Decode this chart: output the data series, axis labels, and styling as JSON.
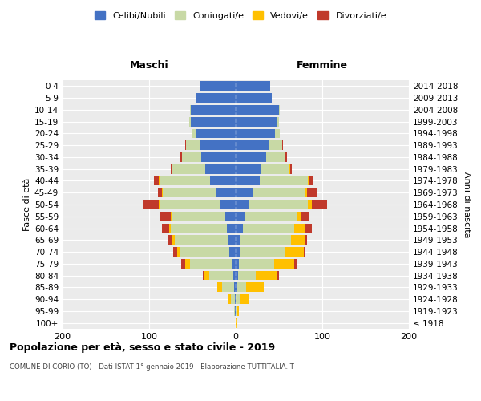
{
  "age_groups": [
    "100+",
    "95-99",
    "90-94",
    "85-89",
    "80-84",
    "75-79",
    "70-74",
    "65-69",
    "60-64",
    "55-59",
    "50-54",
    "45-49",
    "40-44",
    "35-39",
    "30-34",
    "25-29",
    "20-24",
    "15-19",
    "10-14",
    "5-9",
    "0-4"
  ],
  "birth_years": [
    "≤ 1918",
    "1919-1923",
    "1924-1928",
    "1929-1933",
    "1934-1938",
    "1939-1943",
    "1944-1948",
    "1949-1953",
    "1954-1958",
    "1959-1963",
    "1964-1968",
    "1969-1973",
    "1974-1978",
    "1979-1983",
    "1984-1988",
    "1989-1993",
    "1994-1998",
    "1999-2003",
    "2004-2008",
    "2009-2013",
    "2014-2018"
  ],
  "male": {
    "celibi": [
      0,
      1,
      1,
      2,
      3,
      5,
      7,
      8,
      10,
      12,
      18,
      22,
      30,
      35,
      40,
      42,
      45,
      52,
      52,
      45,
      42
    ],
    "coniugati": [
      0,
      1,
      5,
      14,
      28,
      48,
      58,
      62,
      65,
      62,
      70,
      62,
      58,
      38,
      22,
      15,
      5,
      2,
      1,
      0,
      0
    ],
    "vedovi": [
      0,
      0,
      2,
      5,
      5,
      5,
      3,
      3,
      2,
      1,
      1,
      1,
      1,
      0,
      0,
      0,
      0,
      0,
      0,
      0,
      0
    ],
    "divorziati": [
      0,
      0,
      0,
      0,
      2,
      5,
      4,
      6,
      8,
      12,
      18,
      5,
      5,
      2,
      2,
      1,
      0,
      0,
      0,
      0,
      0
    ]
  },
  "female": {
    "nubili": [
      0,
      1,
      1,
      2,
      3,
      4,
      5,
      6,
      8,
      10,
      15,
      20,
      28,
      30,
      35,
      38,
      45,
      48,
      50,
      42,
      40
    ],
    "coniugate": [
      1,
      1,
      4,
      10,
      20,
      40,
      52,
      58,
      60,
      60,
      68,
      60,
      55,
      32,
      22,
      16,
      6,
      2,
      1,
      0,
      0
    ],
    "vedove": [
      1,
      2,
      10,
      20,
      25,
      24,
      22,
      16,
      12,
      6,
      5,
      2,
      2,
      1,
      0,
      0,
      0,
      0,
      0,
      0,
      0
    ],
    "divorziate": [
      0,
      0,
      0,
      0,
      2,
      2,
      2,
      2,
      8,
      8,
      18,
      12,
      5,
      2,
      2,
      1,
      0,
      0,
      0,
      0,
      0
    ]
  },
  "colors": {
    "celibi_nubili": "#4472C4",
    "coniugati": "#c8d9a5",
    "vedovi": "#ffc000",
    "divorziati": "#c0392b"
  },
  "title": "Popolazione per età, sesso e stato civile - 2019",
  "subtitle": "COMUNE DI CORIO (TO) - Dati ISTAT 1° gennaio 2019 - Elaborazione TUTTITALIA.IT",
  "label_maschi": "Maschi",
  "label_femmine": "Femmine",
  "ylabel_left": "Fasce di età",
  "ylabel_right": "Anni di nascita",
  "xlim": 200,
  "legend_labels": [
    "Celibi/Nubili",
    "Coniugati/e",
    "Vedovi/e",
    "Divorziati/e"
  ]
}
